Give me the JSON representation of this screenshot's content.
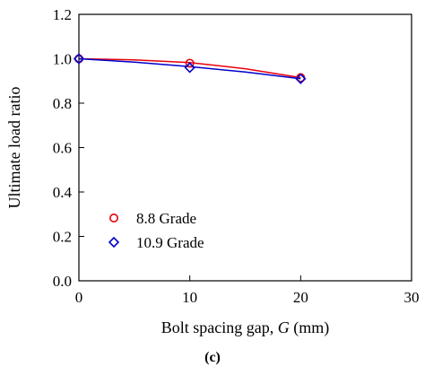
{
  "chart_data": {
    "type": "scatter",
    "xlabel_prefix": "Bolt spacing gap, ",
    "xlabel_var": "G",
    "xlabel_suffix": " (mm)",
    "ylabel": "Ultimate load ratio",
    "xlim": [
      0,
      30
    ],
    "ylim": [
      0,
      1.2
    ],
    "x_ticks": [
      "0",
      "10",
      "20",
      "30"
    ],
    "y_ticks": [
      "0.0",
      "0.2",
      "0.4",
      "0.6",
      "0.8",
      "1.0",
      "1.2"
    ],
    "grid": false,
    "legend_position": "lower-left",
    "series": [
      {
        "name": "8.8 Grade",
        "marker": "circle",
        "color": "#e8000b",
        "x": [
          0,
          10,
          20
        ],
        "y": [
          1.0,
          0.98,
          0.915
        ],
        "trend": [
          [
            0,
            1.0
          ],
          [
            5,
            0.995
          ],
          [
            10,
            0.983
          ],
          [
            15,
            0.955
          ],
          [
            20,
            0.915
          ]
        ]
      },
      {
        "name": "10.9 Grade",
        "marker": "diamond",
        "color": "#0000cc",
        "x": [
          0,
          10,
          20
        ],
        "y": [
          1.0,
          0.96,
          0.91
        ],
        "trend": [
          [
            0,
            1.0
          ],
          [
            5,
            0.985
          ],
          [
            10,
            0.965
          ],
          [
            15,
            0.94
          ],
          [
            20,
            0.91
          ]
        ]
      }
    ]
  },
  "caption": "(c)"
}
